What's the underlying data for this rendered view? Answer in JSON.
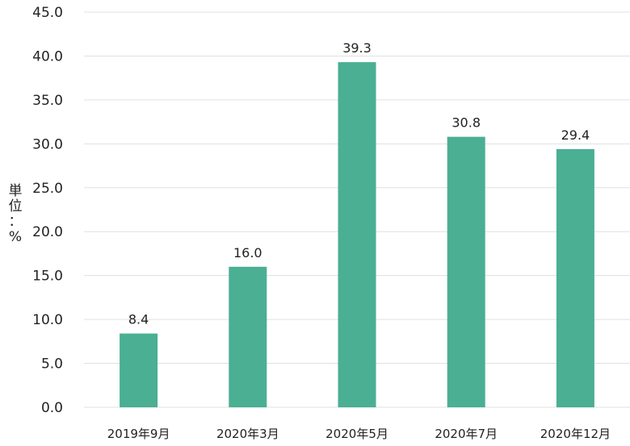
{
  "chart_data": {
    "type": "bar",
    "categories": [
      "2019年9月",
      "2020年3月",
      "2020年5月",
      "2020年7月",
      "2020年12月"
    ],
    "values": [
      8.4,
      16.0,
      39.3,
      30.8,
      29.4
    ],
    "data_labels": [
      "8.4",
      "16.0",
      "39.3",
      "30.8",
      "29.4"
    ],
    "ylabel": "単位：%",
    "ylim": [
      0,
      45
    ],
    "yticks": [
      "0.0",
      "5.0",
      "10.0",
      "15.0",
      "20.0",
      "25.0",
      "30.0",
      "35.0",
      "40.0",
      "45.0"
    ],
    "grid": true,
    "bar_color": "#4aaf93",
    "grid_color": "#e0e0e0",
    "text_color": "#222222"
  }
}
